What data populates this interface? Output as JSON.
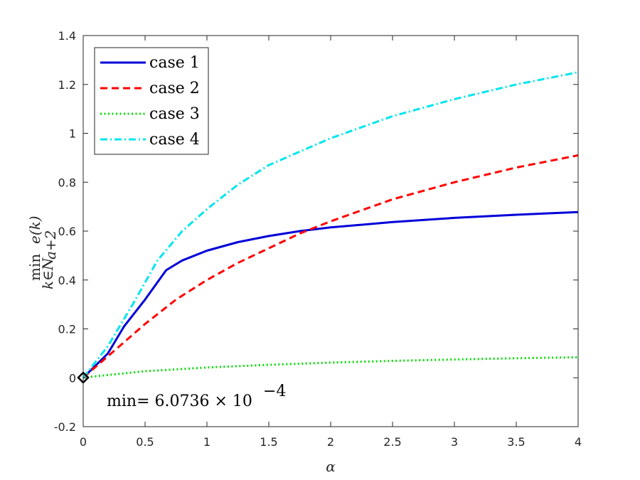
{
  "chart_data": {
    "type": "line",
    "title": "",
    "xlabel": "α",
    "ylabel": {
      "main": "min",
      "sub": "k∈N",
      "sub2": "a+2",
      "tail": "e(k)"
    },
    "xlim": [
      0,
      4
    ],
    "ylim": [
      -0.2,
      1.4
    ],
    "xticks": [
      "0",
      "0.5",
      "1",
      "1.5",
      "2",
      "2.5",
      "3",
      "3.5",
      "4"
    ],
    "yticks": [
      "-0.2",
      "0",
      "0.2",
      "0.4",
      "0.6",
      "0.8",
      "1",
      "1.2",
      "1.4"
    ],
    "grid": false,
    "legend_position": "top-left",
    "series": [
      {
        "name": "case 1",
        "color": "#0000d9",
        "dash": "solid",
        "x": [
          0.0,
          0.1,
          0.2,
          0.33,
          0.5,
          0.67,
          0.8,
          1.0,
          1.25,
          1.5,
          1.75,
          2.0,
          2.5,
          3.0,
          3.5,
          4.0
        ],
        "y": [
          0.0006,
          0.05,
          0.1,
          0.21,
          0.32,
          0.44,
          0.48,
          0.52,
          0.555,
          0.58,
          0.6,
          0.615,
          0.637,
          0.654,
          0.667,
          0.678
        ]
      },
      {
        "name": "case 2",
        "color": "#ff0000",
        "dash": "dashed",
        "x": [
          0.0,
          0.25,
          0.5,
          0.75,
          1.0,
          1.25,
          1.5,
          1.75,
          2.0,
          2.5,
          3.0,
          3.5,
          4.0
        ],
        "y": [
          0.0006,
          0.11,
          0.22,
          0.32,
          0.4,
          0.47,
          0.53,
          0.59,
          0.64,
          0.73,
          0.8,
          0.86,
          0.91
        ]
      },
      {
        "name": "case 3",
        "color": "#00dd00",
        "dash": "dotted",
        "x": [
          0.0,
          0.5,
          1.0,
          1.5,
          2.0,
          2.5,
          3.0,
          3.5,
          4.0
        ],
        "y": [
          0.0006,
          0.027,
          0.042,
          0.053,
          0.062,
          0.069,
          0.075,
          0.08,
          0.084
        ]
      },
      {
        "name": "case 4",
        "color": "#00e5ee",
        "dash": "dashdot",
        "x": [
          0.0,
          0.2,
          0.4,
          0.6,
          0.8,
          1.0,
          1.25,
          1.5,
          2.0,
          2.5,
          3.0,
          3.5,
          4.0
        ],
        "y": [
          0.0006,
          0.13,
          0.3,
          0.48,
          0.6,
          0.69,
          0.79,
          0.87,
          0.98,
          1.07,
          1.14,
          1.2,
          1.25
        ]
      }
    ],
    "marker": {
      "x": 0.0,
      "y": 0.0006,
      "shape": "diamond",
      "color": "#000000"
    },
    "annotation": {
      "text": "min= 6.0736 × 10",
      "exponent": "−4",
      "x": 0.2,
      "y": -0.1
    }
  }
}
